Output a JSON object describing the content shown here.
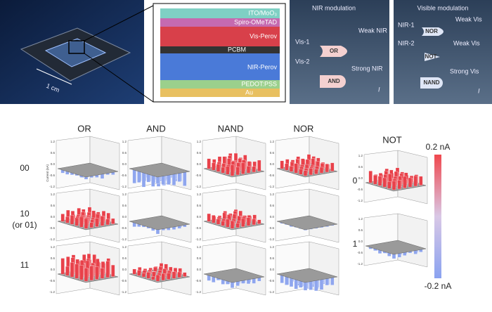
{
  "photo": {
    "scale_label": "1 cm"
  },
  "stack": {
    "layers": [
      "ITO/MoO₃",
      "Spiro-OMeTAD",
      "Vis-Perov",
      "PCBM",
      "NIR-Perov",
      "PEDOT:PSS",
      "Au"
    ]
  },
  "nir_panel": {
    "title": "NIR modulation",
    "inputs": [
      "Vis-1",
      "Vis-2"
    ],
    "labels": [
      "Weak NIR",
      "Strong NIR"
    ],
    "gates": [
      "OR",
      "AND"
    ],
    "output": "I"
  },
  "vis_panel": {
    "title": "Visible modulation",
    "inputs": [
      "NIR-1",
      "NIR-2"
    ],
    "labels": [
      "Weak Vis",
      "Weak Vis",
      "Strong Vis"
    ],
    "gates": [
      "NOR",
      "NOT",
      "NAND"
    ],
    "output": "I"
  },
  "grid": {
    "columns": [
      "OR",
      "AND",
      "NAND",
      "NOR"
    ],
    "rows": [
      [
        "00"
      ],
      [
        "10",
        "(or 01)"
      ],
      [
        "11"
      ]
    ]
  },
  "not_block": {
    "title": "NOT",
    "rows": [
      "0",
      "1"
    ]
  },
  "axis": {
    "label": "Current (nA)",
    "ticks": [
      "1.2",
      "0.6",
      "0.0",
      "-0.6",
      "-1.2"
    ]
  },
  "colorbar": {
    "max": "0.2 nA",
    "min": "-0.2 nA"
  }
}
